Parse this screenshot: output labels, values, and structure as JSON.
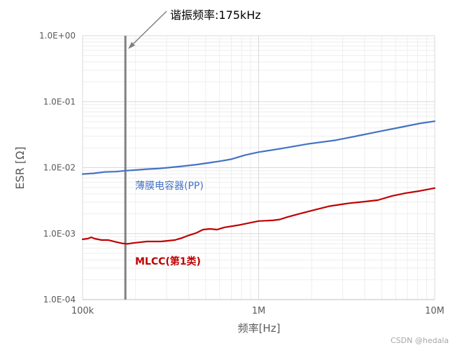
{
  "chart_data": {
    "type": "line",
    "xlabel": "频率[Hz]",
    "ylabel": "ESR [Ω]",
    "xscale": "log",
    "yscale": "log",
    "xlim": [
      100000,
      10000000
    ],
    "ylim": [
      0.0001,
      1
    ],
    "grid": true,
    "minor_grid": true,
    "x_ticks": {
      "values": [
        100000,
        1000000,
        10000000
      ],
      "labels": [
        "100k",
        "1M",
        "10M"
      ]
    },
    "y_ticks": {
      "values": [
        1,
        0.1,
        0.01,
        0.001,
        0.0001
      ],
      "labels": [
        "1.0E+00",
        "1.0E-01",
        "1.0E-02",
        "1.0E-03",
        "1.0E-04"
      ]
    },
    "series": [
      {
        "name": "薄膜电容器(PP)",
        "color": "#4472C4",
        "x": [
          100000,
          115000,
          134000,
          155000,
          176000,
          200000,
          232000,
          270000,
          306000,
          367000,
          440000,
          529000,
          610000,
          697000,
          837000,
          1000000,
          1320000,
          1910000,
          2750000,
          3620000,
          4760000,
          6270000,
          8250000,
          10000000
        ],
        "y": [
          0.008,
          0.0082,
          0.0086,
          0.0087,
          0.009,
          0.0092,
          0.0095,
          0.0097,
          0.01,
          0.0105,
          0.0111,
          0.0119,
          0.0126,
          0.0134,
          0.0155,
          0.0172,
          0.0193,
          0.0229,
          0.0261,
          0.0302,
          0.035,
          0.0405,
          0.0469,
          0.0505
        ]
      },
      {
        "name": "MLCC(第1类)",
        "color": "#C00000",
        "x": [
          100000,
          107000,
          112000,
          117000,
          128000,
          140000,
          154000,
          169000,
          180000,
          193000,
          212000,
          232000,
          279000,
          335000,
          367000,
          400000,
          441000,
          483000,
          529000,
          580000,
          636000,
          763000,
          917000,
          1000000,
          1210000,
          1320000,
          1450000,
          1740000,
          2090000,
          2510000,
          3010000,
          3300000,
          3970000,
          4760000,
          5720000,
          6870000,
          8250000,
          10000000
        ],
        "y": [
          0.00082,
          0.00084,
          0.00088,
          0.00084,
          0.0008,
          0.0008,
          0.00075,
          0.00071,
          0.0007,
          0.00072,
          0.00074,
          0.00076,
          0.00076,
          0.0008,
          0.00086,
          0.00094,
          0.00102,
          0.00115,
          0.00118,
          0.00115,
          0.00124,
          0.00134,
          0.00148,
          0.00155,
          0.00159,
          0.00164,
          0.00178,
          0.00203,
          0.0023,
          0.0026,
          0.0028,
          0.0029,
          0.00305,
          0.00322,
          0.00372,
          0.00412,
          0.00444,
          0.0049
        ]
      }
    ],
    "annotations": [
      {
        "text": "谐振频率:175kHz",
        "x": 175000,
        "line_color": "#808080"
      }
    ]
  },
  "watermark": "CSDN @hedala"
}
